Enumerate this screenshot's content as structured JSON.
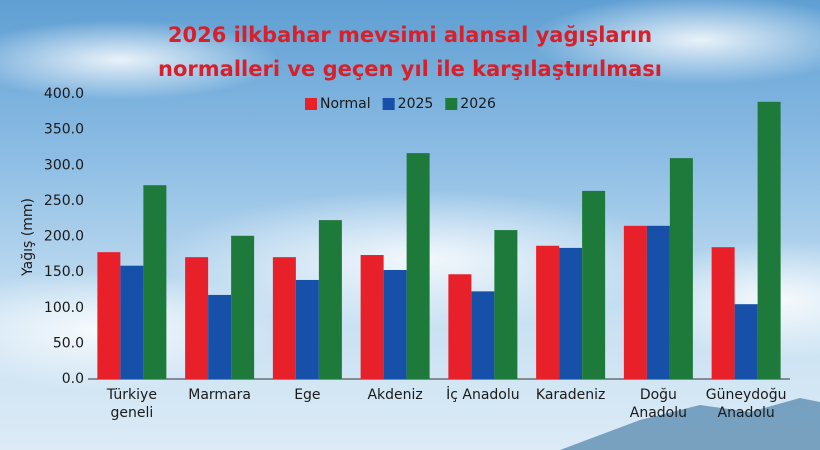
{
  "chart_data": {
    "type": "bar",
    "title": [
      "2026 ilkbahar mevsimi alansal yağışların",
      "normalleri ve geçen yıl ile karşılaştırılması"
    ],
    "y_label": "Yağış (mm)",
    "categories": [
      "Türkiye\ngeneli",
      "Marmara",
      "Ege",
      "Akdeniz",
      "İç Anadolu",
      "Karadeniz",
      "Doğu\nAnadolu",
      "Güneydoğu\nAnadolu"
    ],
    "series": [
      {
        "name": "Normal",
        "color": "#e8202a",
        "values": [
          178,
          171,
          171,
          174,
          147,
          187,
          215,
          185
        ]
      },
      {
        "name": "2025",
        "color": "#1650a8",
        "values": [
          159,
          118,
          139,
          153,
          123,
          184,
          215,
          105
        ]
      },
      {
        "name": "2026",
        "color": "#1e7a3a",
        "values": [
          272,
          201,
          223,
          317,
          209,
          264,
          310,
          389
        ]
      }
    ],
    "ylim": [
      0,
      400
    ],
    "yticks": [
      {
        "value": 0,
        "label": "0.0"
      },
      {
        "value": 50,
        "label": "50.0"
      },
      {
        "value": 100,
        "label": "100.0"
      },
      {
        "value": 150,
        "label": "150.0"
      },
      {
        "value": 200,
        "label": "200.0"
      },
      {
        "value": 250,
        "label": "250.0"
      },
      {
        "value": 300,
        "label": "300.0"
      },
      {
        "value": 350,
        "label": "350.0"
      },
      {
        "value": 400,
        "label": "400.0"
      }
    ],
    "grid": false,
    "legend": "top"
  }
}
